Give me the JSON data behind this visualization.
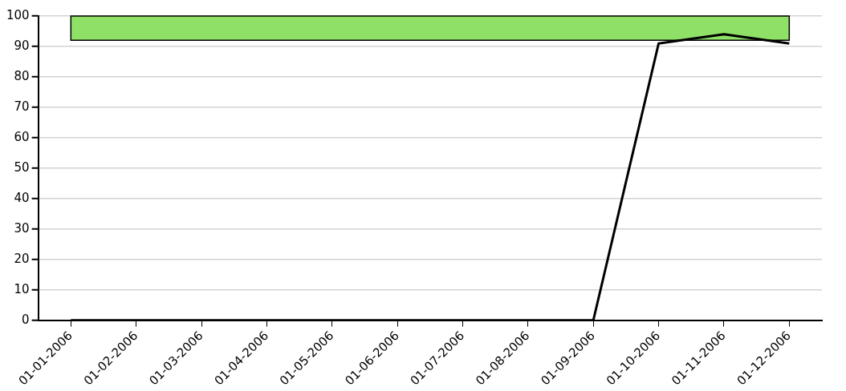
{
  "chart_data": {
    "type": "line",
    "categories": [
      "01-01-2006",
      "01-02-2006",
      "01-03-2006",
      "01-04-2006",
      "01-05-2006",
      "01-06-2006",
      "01-07-2006",
      "01-08-2006",
      "01-09-2006",
      "01-10-2006",
      "01-11-2006",
      "01-12-2006"
    ],
    "series": [
      {
        "color": "#000000",
        "values": [
          0,
          0,
          0,
          0,
          0,
          0,
          0,
          0,
          0,
          91,
          94,
          91
        ]
      }
    ],
    "ylim": [
      0,
      100
    ],
    "yticks": [
      0,
      10,
      20,
      30,
      40,
      50,
      60,
      70,
      80,
      90,
      100
    ],
    "grid": "y",
    "legend": false,
    "marker": "none",
    "line_style": "solid",
    "bands": [
      {
        "axis": "y",
        "from": 92,
        "to": 100,
        "color": "#8fe066"
      }
    ]
  }
}
